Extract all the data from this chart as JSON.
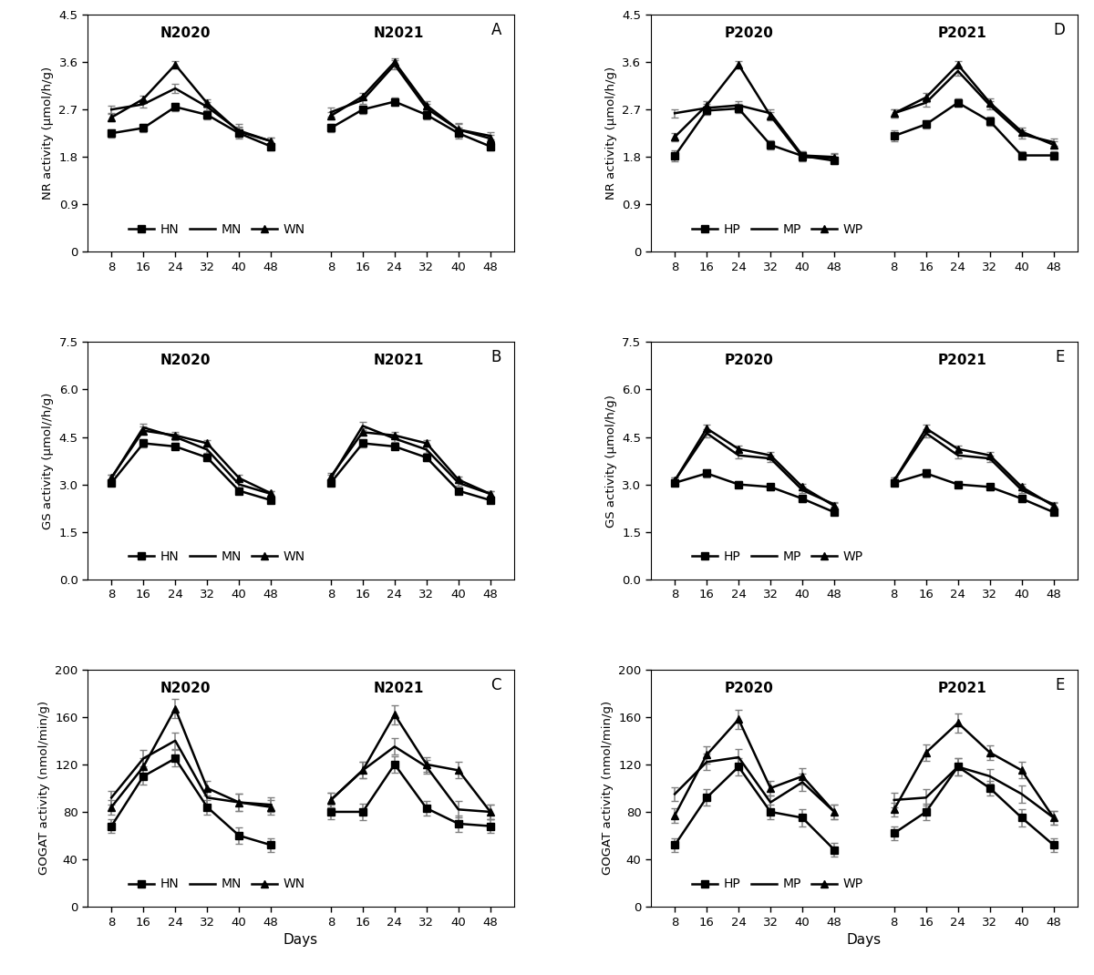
{
  "days": [
    8,
    16,
    24,
    32,
    40,
    48
  ],
  "panel_A": {
    "title_left": "N2020",
    "title_right": "N2021",
    "label": "A",
    "ylabel": "NR activity (μmol/h/g)",
    "ylim": [
      0,
      4.5
    ],
    "yticks": [
      0,
      0.9,
      1.8,
      2.7,
      3.6,
      4.5
    ],
    "legend": [
      "HN",
      "MN",
      "WN"
    ],
    "s1_HN": [
      2.25,
      2.35,
      2.75,
      2.6,
      2.25,
      2.0
    ],
    "s1_MN": [
      2.7,
      2.8,
      3.1,
      2.75,
      2.3,
      2.1
    ],
    "s1_WN": [
      2.55,
      2.9,
      3.55,
      2.82,
      2.28,
      2.1
    ],
    "e1_HN": [
      0.08,
      0.08,
      0.08,
      0.08,
      0.1,
      0.07
    ],
    "e1_MN": [
      0.07,
      0.07,
      0.08,
      0.09,
      0.12,
      0.07
    ],
    "e1_WN": [
      0.07,
      0.06,
      0.07,
      0.08,
      0.1,
      0.07
    ],
    "s2_HN": [
      2.35,
      2.7,
      2.85,
      2.6,
      2.25,
      2.0
    ],
    "s2_MN": [
      2.65,
      2.88,
      3.55,
      2.72,
      2.32,
      2.2
    ],
    "s2_WN": [
      2.58,
      2.95,
      3.6,
      2.78,
      2.32,
      2.15
    ],
    "e2_HN": [
      0.08,
      0.08,
      0.08,
      0.08,
      0.1,
      0.07
    ],
    "e2_MN": [
      0.08,
      0.07,
      0.08,
      0.09,
      0.12,
      0.07
    ],
    "e2_WN": [
      0.07,
      0.06,
      0.07,
      0.08,
      0.1,
      0.07
    ]
  },
  "panel_B": {
    "title_left": "N2020",
    "title_right": "N2021",
    "label": "B",
    "ylabel": "GS activity (μmol//h/g)",
    "ylim": [
      0.0,
      7.5
    ],
    "yticks": [
      0.0,
      1.5,
      3.0,
      4.5,
      6.0,
      7.5
    ],
    "legend": [
      "HN",
      "MN",
      "WN"
    ],
    "s1_HN": [
      3.05,
      4.3,
      4.2,
      3.85,
      2.8,
      2.5
    ],
    "s1_MN": [
      3.2,
      4.8,
      4.5,
      4.1,
      3.0,
      2.7
    ],
    "s1_WN": [
      3.22,
      4.7,
      4.55,
      4.3,
      3.2,
      2.72
    ],
    "e1_HN": [
      0.1,
      0.12,
      0.1,
      0.1,
      0.1,
      0.08
    ],
    "e1_MN": [
      0.1,
      0.12,
      0.1,
      0.1,
      0.1,
      0.08
    ],
    "e1_WN": [
      0.1,
      0.12,
      0.1,
      0.1,
      0.1,
      0.08
    ],
    "s2_HN": [
      3.05,
      4.3,
      4.2,
      3.85,
      2.8,
      2.5
    ],
    "s2_MN": [
      3.2,
      4.85,
      4.45,
      4.1,
      3.05,
      2.7
    ],
    "s2_WN": [
      3.25,
      4.65,
      4.55,
      4.3,
      3.15,
      2.7
    ],
    "e2_HN": [
      0.1,
      0.12,
      0.1,
      0.1,
      0.1,
      0.08
    ],
    "e2_MN": [
      0.1,
      0.12,
      0.1,
      0.1,
      0.1,
      0.08
    ],
    "e2_WN": [
      0.1,
      0.12,
      0.1,
      0.1,
      0.1,
      0.08
    ]
  },
  "panel_C": {
    "title_left": "N2020",
    "title_right": "N2021",
    "label": "C",
    "ylabel": "GOGAT activity (nmol/min/g)",
    "ylim": [
      0,
      200
    ],
    "yticks": [
      0,
      40,
      80,
      120,
      160,
      200
    ],
    "legend": [
      "HN",
      "MN",
      "WN"
    ],
    "s1_HN": [
      68,
      110,
      125,
      84,
      60,
      52
    ],
    "s1_MN": [
      92,
      125,
      140,
      92,
      88,
      86
    ],
    "s1_WN": [
      84,
      118,
      167,
      100,
      88,
      84
    ],
    "e1_HN": [
      6,
      7,
      7,
      6,
      7,
      6
    ],
    "e1_MN": [
      6,
      7,
      7,
      6,
      7,
      6
    ],
    "e1_WN": [
      6,
      7,
      8,
      6,
      7,
      6
    ],
    "s2_HN": [
      80,
      80,
      120,
      83,
      70,
      68
    ],
    "s2_MN": [
      90,
      115,
      135,
      118,
      82,
      80
    ],
    "s2_WN": [
      90,
      115,
      162,
      120,
      115,
      80
    ],
    "e2_HN": [
      6,
      7,
      7,
      6,
      7,
      6
    ],
    "e2_MN": [
      6,
      7,
      7,
      6,
      7,
      6
    ],
    "e2_WN": [
      6,
      7,
      8,
      6,
      7,
      6
    ]
  },
  "panel_D": {
    "title_left": "P2020",
    "title_right": "P2021",
    "label": "D",
    "ylabel": "NR activity (μmol/h/g)",
    "ylim": [
      0,
      4.5
    ],
    "yticks": [
      0,
      0.9,
      1.8,
      2.7,
      3.6,
      4.5
    ],
    "legend": [
      "HP",
      "MP",
      "WP"
    ],
    "s1_HP": [
      1.82,
      2.68,
      2.72,
      2.03,
      1.82,
      1.73
    ],
    "s1_MP": [
      2.63,
      2.73,
      2.78,
      2.63,
      1.83,
      1.8
    ],
    "s1_WP": [
      2.18,
      2.78,
      3.55,
      2.58,
      1.8,
      1.78
    ],
    "e1_HP": [
      0.1,
      0.08,
      0.08,
      0.08,
      0.08,
      0.07
    ],
    "e1_MP": [
      0.08,
      0.08,
      0.08,
      0.08,
      0.08,
      0.07
    ],
    "e1_WP": [
      0.08,
      0.08,
      0.07,
      0.08,
      0.08,
      0.07
    ],
    "s2_HP": [
      2.2,
      2.42,
      2.83,
      2.48,
      1.83,
      1.83
    ],
    "s2_MP": [
      2.63,
      2.83,
      3.43,
      2.78,
      2.23,
      2.08
    ],
    "s2_WP": [
      2.63,
      2.93,
      3.55,
      2.83,
      2.28,
      2.03
    ],
    "e2_HP": [
      0.1,
      0.08,
      0.08,
      0.08,
      0.08,
      0.07
    ],
    "e2_MP": [
      0.08,
      0.08,
      0.08,
      0.08,
      0.08,
      0.07
    ],
    "e2_WP": [
      0.08,
      0.08,
      0.07,
      0.08,
      0.08,
      0.07
    ]
  },
  "panel_E": {
    "title_left": "P2020",
    "title_right": "P2021",
    "label": "E",
    "ylabel": "GS activity (μmol/h/g)",
    "ylim": [
      0.0,
      7.5
    ],
    "yticks": [
      0.0,
      1.5,
      3.0,
      4.5,
      6.0,
      7.5
    ],
    "legend": [
      "HP",
      "MP",
      "WP"
    ],
    "s1_HP": [
      3.05,
      3.35,
      3.0,
      2.92,
      2.55,
      2.12
    ],
    "s1_MP": [
      3.12,
      4.62,
      3.92,
      3.82,
      2.82,
      2.37
    ],
    "s1_WP": [
      3.12,
      4.77,
      4.12,
      3.92,
      2.92,
      2.32
    ],
    "e1_HP": [
      0.1,
      0.12,
      0.1,
      0.1,
      0.1,
      0.08
    ],
    "e1_MP": [
      0.1,
      0.12,
      0.1,
      0.1,
      0.1,
      0.08
    ],
    "e1_WP": [
      0.1,
      0.12,
      0.1,
      0.1,
      0.1,
      0.08
    ],
    "s2_HP": [
      3.05,
      3.35,
      3.0,
      2.92,
      2.55,
      2.12
    ],
    "s2_MP": [
      3.12,
      4.62,
      3.92,
      3.82,
      2.82,
      2.37
    ],
    "s2_WP": [
      3.12,
      4.77,
      4.12,
      3.92,
      2.92,
      2.32
    ],
    "e2_HP": [
      0.1,
      0.12,
      0.1,
      0.1,
      0.1,
      0.08
    ],
    "e2_MP": [
      0.1,
      0.12,
      0.1,
      0.1,
      0.1,
      0.08
    ],
    "e2_WP": [
      0.1,
      0.12,
      0.1,
      0.1,
      0.1,
      0.08
    ]
  },
  "panel_F": {
    "title_left": "P2020",
    "title_right": "P2021",
    "label": "E",
    "ylabel": "GOGAT activity (nmol/min/g)",
    "ylim": [
      0,
      200
    ],
    "yticks": [
      0,
      40,
      80,
      120,
      160,
      200
    ],
    "legend": [
      "HP",
      "MP",
      "WP"
    ],
    "s1_HP": [
      52,
      92,
      118,
      80,
      75,
      48
    ],
    "s1_MP": [
      95,
      122,
      126,
      88,
      105,
      80
    ],
    "s1_WP": [
      77,
      128,
      158,
      100,
      110,
      80
    ],
    "e1_HP": [
      6,
      7,
      7,
      6,
      7,
      6
    ],
    "e1_MP": [
      6,
      7,
      7,
      6,
      7,
      6
    ],
    "e1_WP": [
      6,
      7,
      8,
      6,
      7,
      6
    ],
    "s2_HP": [
      62,
      80,
      118,
      100,
      75,
      52
    ],
    "s2_MP": [
      90,
      92,
      118,
      110,
      95,
      75
    ],
    "s2_WP": [
      82,
      130,
      155,
      130,
      115,
      75
    ],
    "e2_HP": [
      6,
      7,
      7,
      6,
      7,
      6
    ],
    "e2_MP": [
      6,
      7,
      7,
      6,
      7,
      6
    ],
    "e2_WP": [
      6,
      7,
      8,
      6,
      7,
      6
    ]
  },
  "ecolor": "gray",
  "capsize": 3,
  "xlabel": "Days"
}
